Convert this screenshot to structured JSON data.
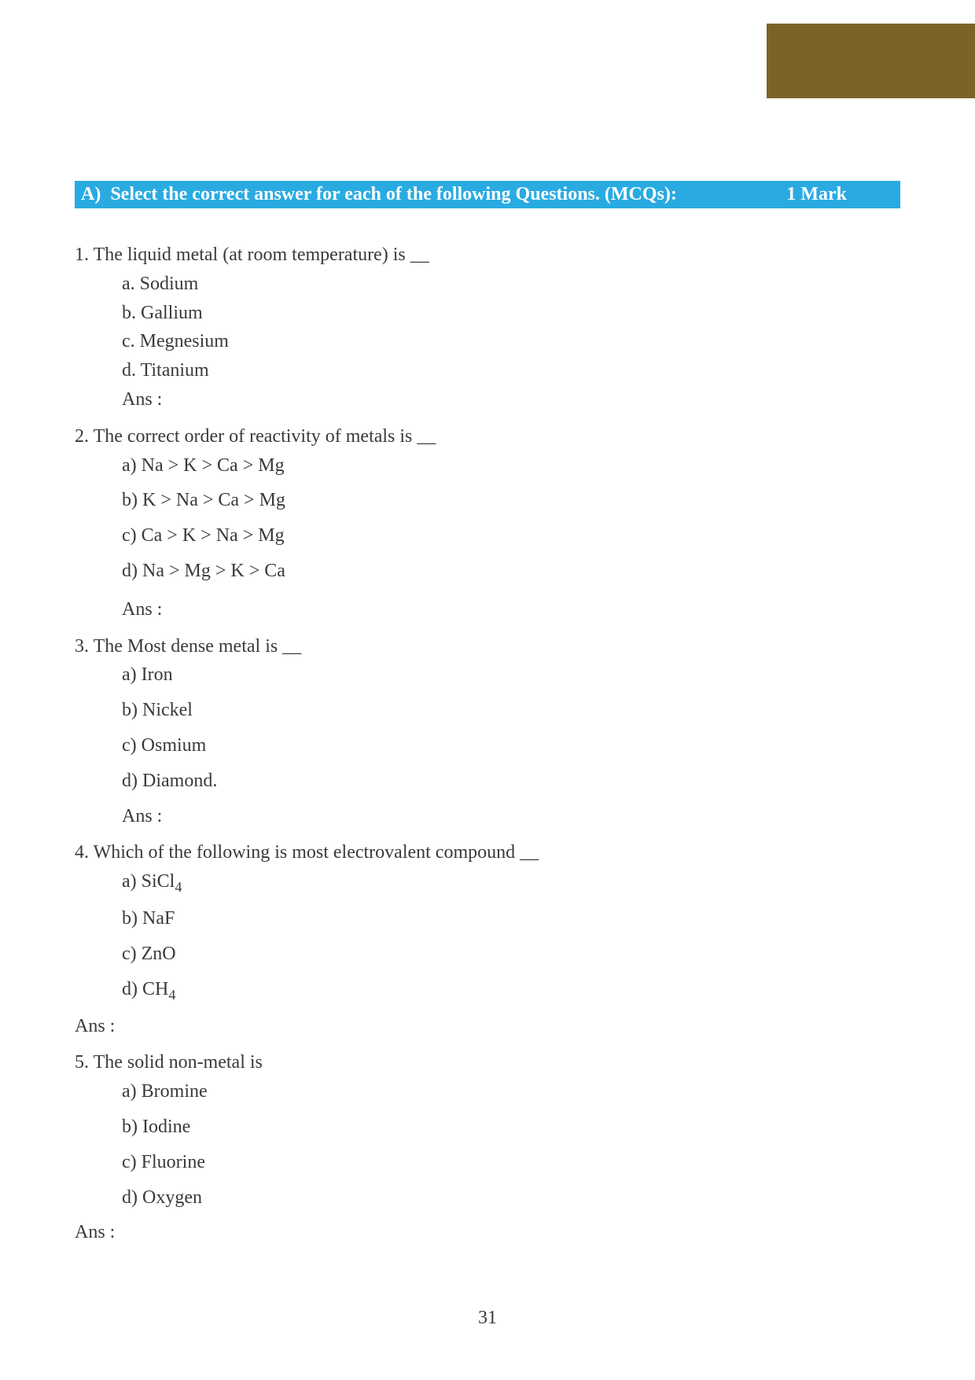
{
  "corner": {
    "bg_color": "#7a6326"
  },
  "section": {
    "label": "A)",
    "title": "Select the correct answer for each of the following Questions. (MCQs):",
    "mark": "1 Mark",
    "bg_color": "#29abe2",
    "text_color": "#ffffff"
  },
  "questions": [
    {
      "num": "1.",
      "text": "The liquid metal (at room temperature) is __",
      "options": [
        "a. Sodium",
        "b. Gallium",
        "c. Megnesium",
        "d. Titanium"
      ],
      "ans_label": "Ans :"
    },
    {
      "num": "2.",
      "text": "The correct order of reactivity of metals is __",
      "options": [
        "a) Na > K > Ca > Mg",
        "b) K > Na > Ca > Mg",
        "c) Ca > K > Na > Mg",
        "d) Na > Mg > K > Ca"
      ],
      "ans_label": "Ans :"
    },
    {
      "num": "3.",
      "text": " The Most dense metal is __",
      "options": [
        "a) Iron",
        "b) Nickel",
        "c) Osmium",
        "d) Diamond."
      ],
      "ans_label": "Ans :"
    },
    {
      "num": "4.",
      "text": "Which of the following is most electrovalent compound __",
      "options_html": [
        "a)  SiCl<sub>4</sub>",
        "b) NaF",
        "c) ZnO",
        "d) CH<sub>4</sub>"
      ],
      "ans_label": "Ans :"
    },
    {
      "num": "5.",
      "text": " The solid non-metal is",
      "options": [
        "a) Bromine",
        "b) Iodine",
        "c) Fluorine",
        "d) Oxygen"
      ],
      "ans_label": "Ans :"
    }
  ],
  "page_number": "31"
}
